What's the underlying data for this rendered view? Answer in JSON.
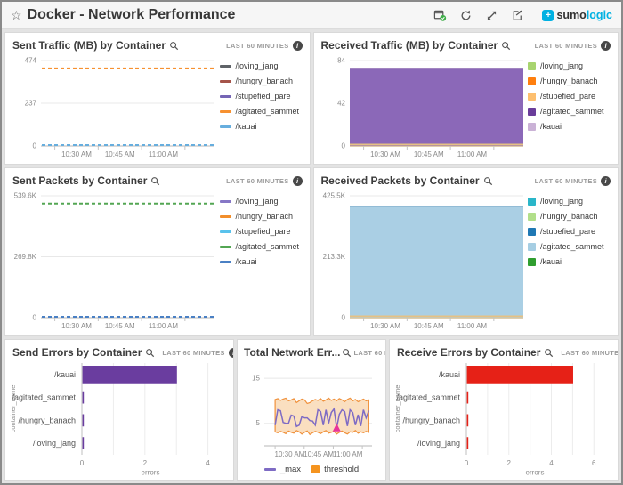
{
  "header": {
    "title": "Docker - Network Performance",
    "favorite_icon": "star-outline-icon",
    "toolbar_icons": [
      "live-status-icon",
      "refresh-icon",
      "expand-icon",
      "export-icon"
    ],
    "logo": {
      "mark": "+",
      "sumo": "sumo",
      "logic": "logic",
      "brand_color": "#00b1e2"
    }
  },
  "panels": [
    {
      "title": "Sent Traffic (MB) by Container",
      "time_range": "LAST 60 MINUTES"
    },
    {
      "title": "Received Traffic (MB) by Container",
      "time_range": "LAST 60 MINUTES"
    },
    {
      "title": "Sent Packets by Container",
      "time_range": "LAST 60 MINUTES"
    },
    {
      "title": "Received Packets by Container",
      "time_range": "LAST 60 MINUTES"
    },
    {
      "title": "Send Errors by Container",
      "time_range": "LAST 60 MINUTES"
    },
    {
      "title": "Total Network Err...",
      "time_range": "LAST 60 MINUTES"
    },
    {
      "title": "Receive Errors by Container",
      "time_range": "LAST 60 MINUTES"
    }
  ],
  "chart_data": [
    {
      "type": "line",
      "title": "Sent Traffic (MB) by Container",
      "ymax": 474,
      "yticks": [
        {
          "v": 0,
          "label": "0"
        },
        {
          "v": 237,
          "label": "237"
        },
        {
          "v": 474,
          "label": "474"
        }
      ],
      "xticks": [
        "10:30 AM",
        "10:45 AM",
        "11:00 AM"
      ],
      "legend_marker": "dash",
      "series": [
        {
          "name": "/loving_jang",
          "color": "#5f6368",
          "value": 0
        },
        {
          "name": "/hungry_banach",
          "color": "#a5544a",
          "value": 0
        },
        {
          "name": "/stupefied_pare",
          "color": "#7565b5",
          "value": 0
        },
        {
          "name": "/agitated_sammet",
          "color": "#f79130",
          "value": 430
        },
        {
          "name": "/kauai",
          "color": "#67aede",
          "value": 3
        }
      ]
    },
    {
      "type": "area",
      "title": "Received Traffic (MB) by Container",
      "ymax": 84,
      "yticks": [
        {
          "v": 0,
          "label": "0"
        },
        {
          "v": 42,
          "label": "42"
        },
        {
          "v": 84,
          "label": "84"
        }
      ],
      "xticks": [
        "10:30 AM",
        "10:45 AM",
        "11:00 AM"
      ],
      "legend_marker": "square",
      "area": {
        "name": "/agitated_sammet",
        "fill": "#8b68b8",
        "stroke": "#6a3d9a",
        "value": 76
      },
      "strip": "#e5c184",
      "legend": [
        {
          "label": "/loving_jang",
          "color": "#a8d46f"
        },
        {
          "label": "/hungry_banach",
          "color": "#ff7f0e"
        },
        {
          "label": "/stupefied_pare",
          "color": "#fdbf6f"
        },
        {
          "label": "/agitated_sammet",
          "color": "#6a3d9a"
        },
        {
          "label": "/kauai",
          "color": "#cab2d6"
        }
      ]
    },
    {
      "type": "line",
      "title": "Sent Packets by Container",
      "ymax": 539600,
      "yticks": [
        {
          "v": 0,
          "label": "0"
        },
        {
          "v": 269800,
          "label": "269.8K"
        },
        {
          "v": 539600,
          "label": "539.6K"
        }
      ],
      "xticks": [
        "10:30 AM",
        "10:45 AM",
        "11:00 AM"
      ],
      "legend_marker": "dash",
      "series": [
        {
          "name": "/loving_jang",
          "color": "#8677c6",
          "value": 0
        },
        {
          "name": "/hungry_banach",
          "color": "#f28e2b",
          "value": 0
        },
        {
          "name": "/stupefied_pare",
          "color": "#59c2ec",
          "value": 0
        },
        {
          "name": "/agitated_sammet",
          "color": "#53a653",
          "value": 505000
        },
        {
          "name": "/kauai",
          "color": "#4a80c4",
          "value": 3000
        }
      ]
    },
    {
      "type": "area",
      "title": "Received Packets by Container",
      "ymax": 425500,
      "yticks": [
        {
          "v": 0,
          "label": "0"
        },
        {
          "v": 213300,
          "label": "213.3K"
        },
        {
          "v": 425500,
          "label": "425.5K"
        }
      ],
      "xticks": [
        "10:30 AM",
        "10:45 AM",
        "11:00 AM"
      ],
      "legend_marker": "square",
      "area": {
        "name": "/agitated_sammet",
        "fill": "#aacfe4",
        "stroke": "#8fb8d3",
        "value": 388000
      },
      "strip": "#e5c184",
      "legend": [
        {
          "label": "/loving_jang",
          "color": "#2ab6c9"
        },
        {
          "label": "/hungry_banach",
          "color": "#b2df8a"
        },
        {
          "label": "/stupefied_pare",
          "color": "#1f78b4"
        },
        {
          "label": "/agitated_sammet",
          "color": "#a6cee3"
        },
        {
          "label": "/kauai",
          "color": "#2f9e2f"
        }
      ]
    },
    {
      "type": "hbar",
      "title": "Send Errors by Container",
      "categories": [
        "/kauai",
        "/agitated_sammet",
        "/hungry_banach",
        "/loving_jang"
      ],
      "values": [
        3,
        0.02,
        0.02,
        0.02
      ],
      "xticks": [
        0,
        2,
        4
      ],
      "xmax": 4.35,
      "grid_step": 1,
      "color": "#6a3d9f",
      "xlabel": "errors",
      "ylabel": "container_name"
    },
    {
      "type": "band",
      "title": "Total Network Errors",
      "ymax": 17,
      "yticks": [
        {
          "v": 5,
          "label": "5"
        },
        {
          "v": 15,
          "label": "15"
        }
      ],
      "xticks": [
        "10:30 AM",
        "10:45 AM",
        "11:00 AM"
      ],
      "line": {
        "name": "_max",
        "color": "#7e6bc4",
        "values": [
          4.6,
          8,
          7.8,
          5.2,
          5,
          5,
          6.8,
          6.6,
          4.3,
          4.6,
          6.5,
          6.2,
          6.2,
          5.6,
          5.5,
          4.6,
          8,
          7.6,
          4.6,
          8,
          5,
          7.4,
          8.2,
          4,
          7,
          8,
          7.6,
          4.4,
          8,
          7.4,
          4.6,
          6.9,
          4.4,
          8,
          6.2,
          7.8
        ]
      },
      "band": {
        "name": "threshold",
        "fill": "#fadfc0",
        "stroke": "#f0913b",
        "upper": [
          10.3,
          10.5,
          10.1,
          10.4,
          10.6,
          10,
          10.2,
          10.5,
          9.6,
          10,
          10.4,
          10.2,
          9.4,
          9.6,
          10,
          10.3,
          10.1,
          10.5,
          9.9,
          10.2,
          10.6,
          10.1,
          10.4,
          10,
          10.5,
          10.2,
          9.8,
          10.3,
          10.6,
          10,
          10.3,
          9.8,
          10.1,
          10.4,
          10,
          10.2
        ],
        "lower": [
          3.1,
          2.9,
          3.2,
          3,
          2.7,
          3.3,
          3,
          2.8,
          3.4,
          3.1,
          2.6,
          3,
          3.3,
          2.5,
          2.9,
          3.2,
          3,
          2.7,
          3.1,
          3.4,
          2.8,
          3,
          3.2,
          2.6,
          3,
          3.3,
          2.9,
          2.6,
          3.1,
          3,
          3.4,
          2.8,
          3.1,
          2.9,
          3.2,
          3
        ]
      },
      "marker": {
        "index": 23,
        "value": 4,
        "color": "#e8359a",
        "icon": "alert-triangle-marker"
      },
      "legend": [
        {
          "label": "_max",
          "marker": "dash",
          "color": "#7e6bc4"
        },
        {
          "label": "threshold",
          "marker": "square",
          "color": "#f5941f"
        }
      ]
    },
    {
      "type": "hbar",
      "title": "Receive Errors by Container",
      "categories": [
        "/kauai",
        "/agitated_sammet",
        "/hungry_banach",
        "/loving_jang"
      ],
      "values": [
        5,
        0.02,
        0.02,
        0.02
      ],
      "xticks": [
        0,
        2,
        4,
        6
      ],
      "xmax": 6.45,
      "grid_step": 1,
      "color": "#e62117",
      "xlabel": "errors",
      "ylabel": "container_name"
    }
  ]
}
